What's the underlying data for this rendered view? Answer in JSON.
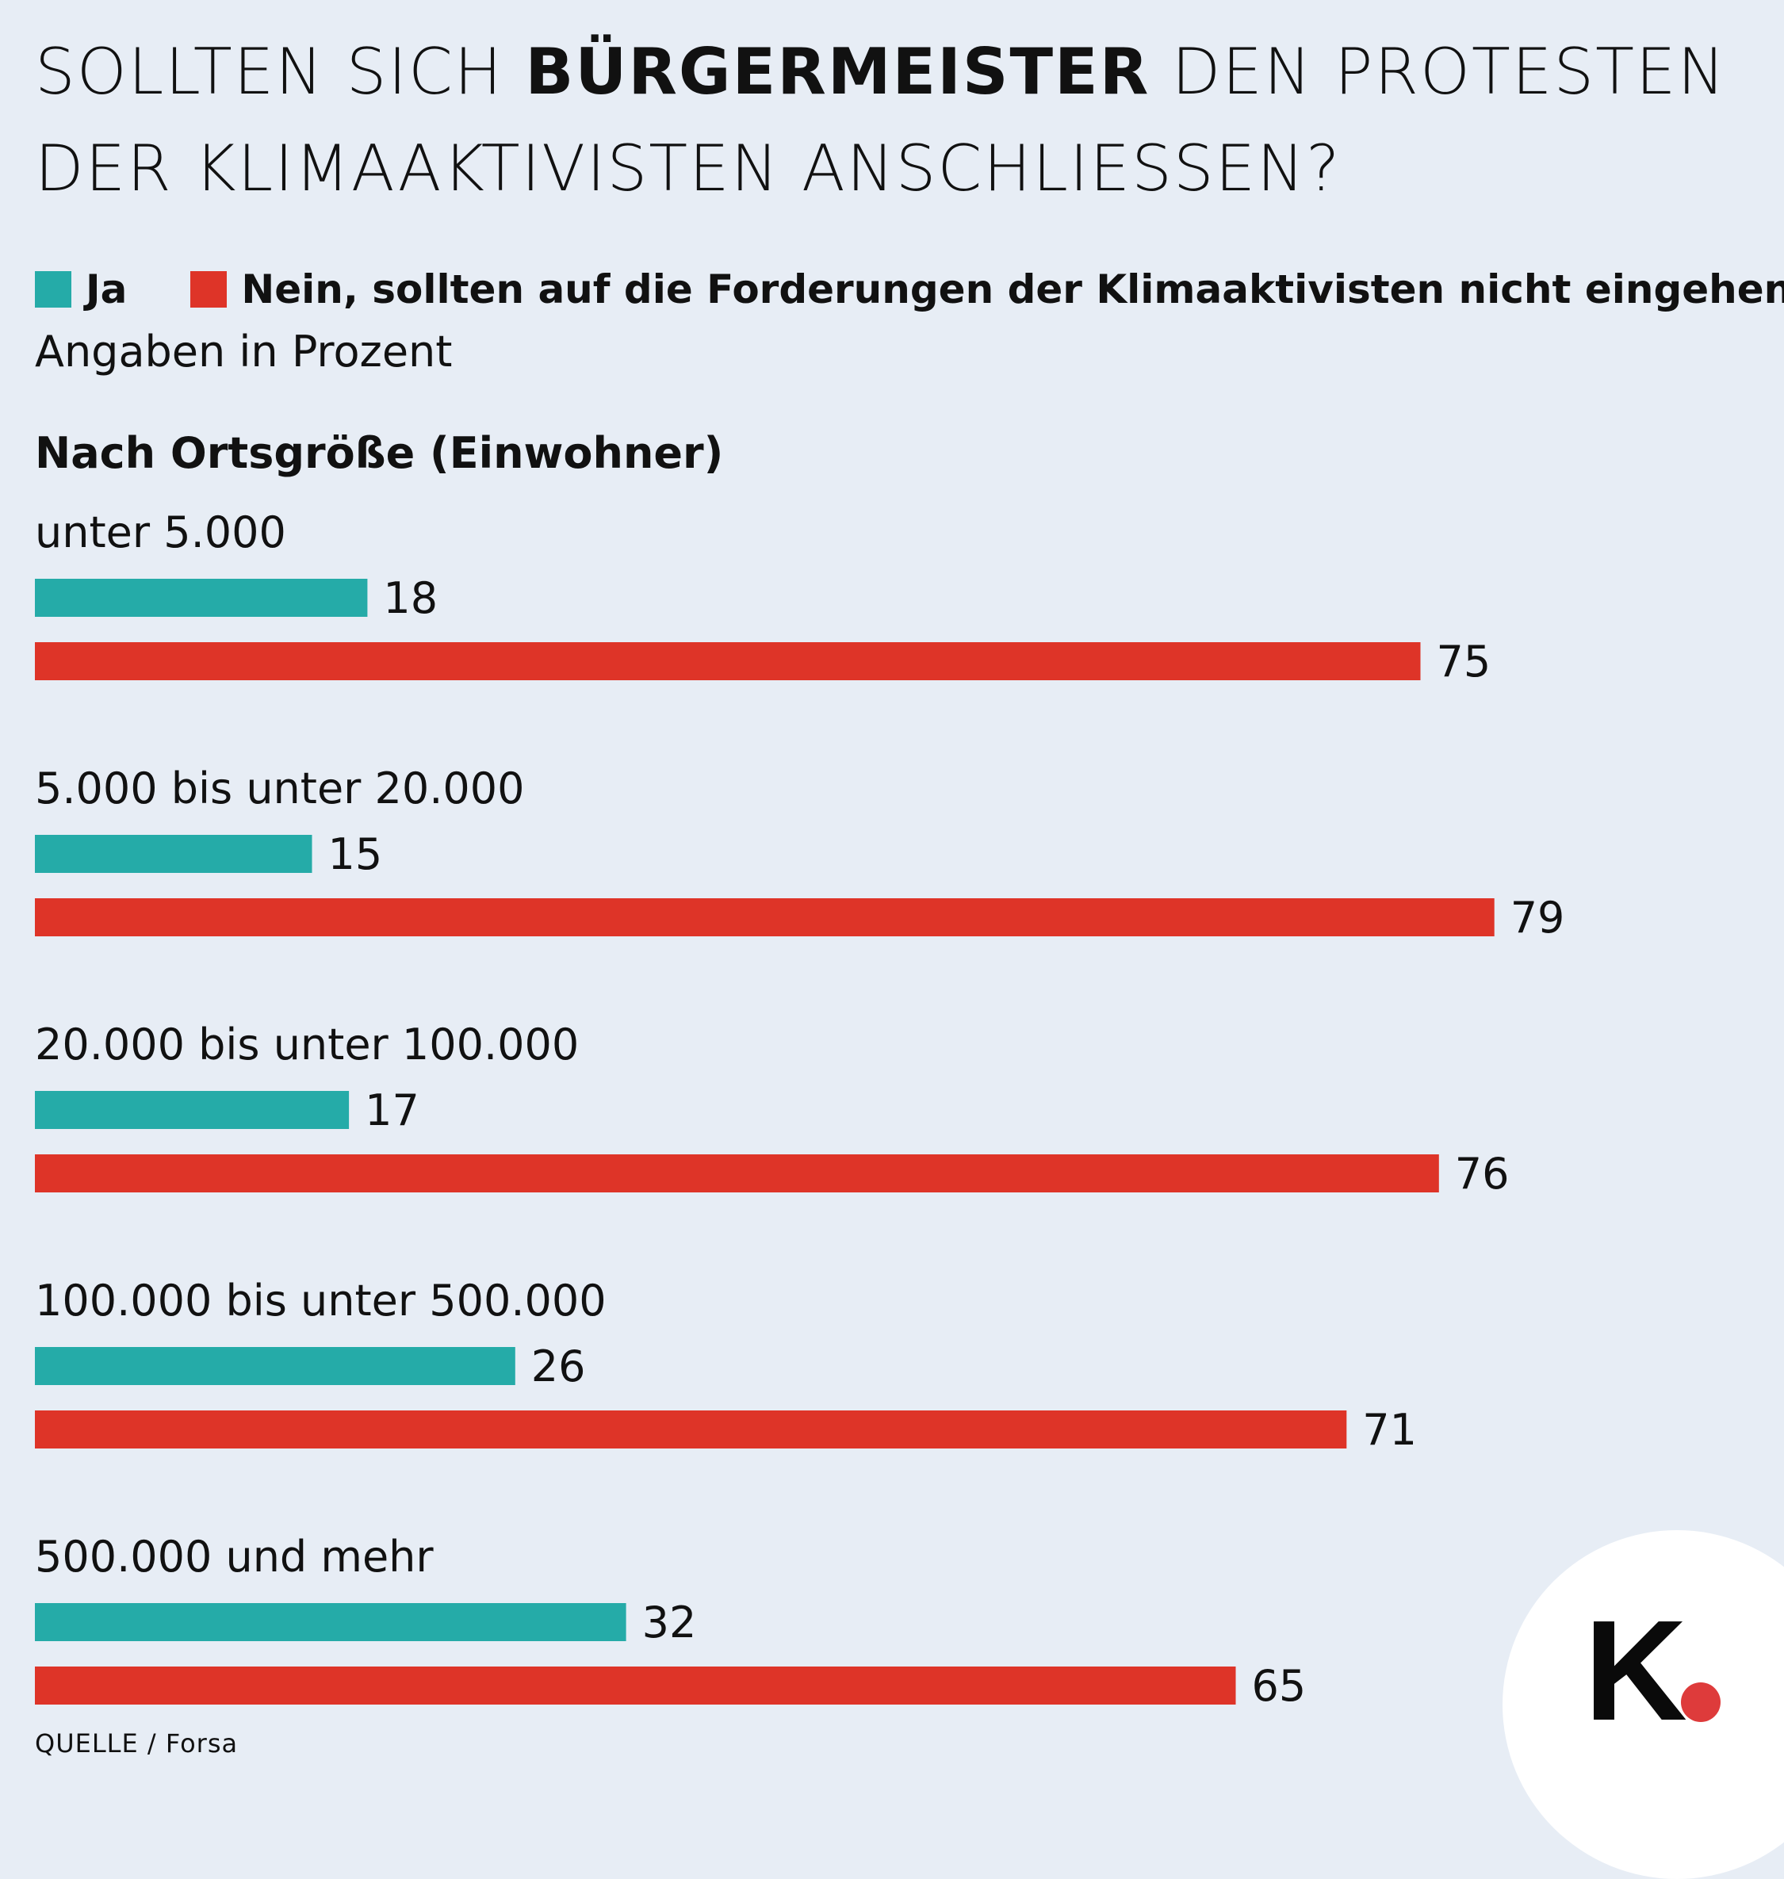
{
  "title": {
    "part1": "SOLLTEN SICH ",
    "bold": "BÜRGERMEISTER",
    "part2": " DEN PROTESTEN DER KLIMAAKTIVISTEN ANSCHLIESSEN?"
  },
  "legend": {
    "ja": "Ja",
    "nein": "Nein, sollten auf die Forderungen der Klimaaktivisten nicht eingehen"
  },
  "unit_note": "Angaben in Prozent",
  "footer": "QUELLE / Forsa",
  "logo": {
    "letter": "K"
  },
  "colors": {
    "ja": "#25aba8",
    "nein": "#de3428",
    "background": "#e7edf5"
  },
  "chart_data": {
    "type": "bar",
    "orientation": "horizontal",
    "group_title": "Nach Ortsgröße (Einwohner)",
    "categories": [
      "unter 5.000",
      "5.000 bis unter 20.000",
      "20.000 bis unter 100.000",
      "100.000 bis unter 500.000",
      "500.000 und mehr"
    ],
    "series": [
      {
        "name": "Ja",
        "values": [
          18,
          15,
          17,
          26,
          32
        ]
      },
      {
        "name": "Nein, sollten auf die Forderungen der Klimaaktivisten nicht eingehen",
        "values": [
          75,
          79,
          76,
          71,
          65
        ]
      }
    ],
    "xlim": [
      0,
      100
    ],
    "grid": false,
    "legend_position": "top"
  }
}
